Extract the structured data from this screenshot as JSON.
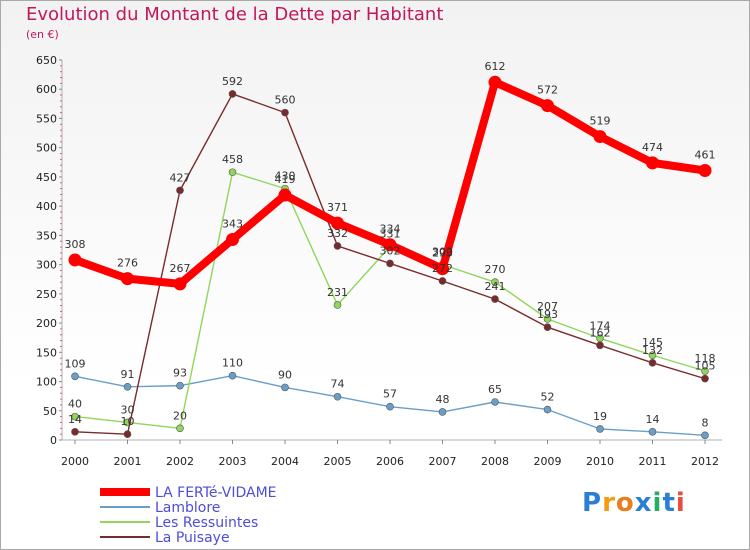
{
  "title": "Evolution du Montant de la Dette par Habitant",
  "subtitle": "(en €)",
  "logo": "Proxiti",
  "chart_data": {
    "type": "line",
    "x": [
      "2000",
      "2001",
      "2002",
      "2003",
      "2004",
      "2005",
      "2006",
      "2007",
      "2008",
      "2009",
      "2010",
      "2011",
      "2012"
    ],
    "ylim": [
      0,
      650
    ],
    "yticks": [
      0,
      50,
      100,
      150,
      200,
      250,
      300,
      350,
      400,
      450,
      500,
      550,
      600,
      650
    ],
    "grid": false,
    "legend_position": "bottom-left",
    "series": [
      {
        "name": "LA FERTé-VIDAME",
        "color": "#ff0000",
        "values": [
          308,
          276,
          267,
          343,
          419,
          371,
          334,
          293,
          612,
          572,
          519,
          474,
          461
        ]
      },
      {
        "name": "Lamblore",
        "color": "#6a9ec9",
        "values": [
          109,
          91,
          93,
          110,
          90,
          74,
          57,
          48,
          65,
          52,
          19,
          14,
          8
        ]
      },
      {
        "name": "Les Ressuintes",
        "color": "#8fd65a",
        "values": [
          40,
          30,
          20,
          458,
          430,
          231,
          331,
          300,
          270,
          207,
          174,
          145,
          118
        ]
      },
      {
        "name": "La Puisaye",
        "color": "#7a2a2a",
        "values": [
          14,
          10,
          427,
          592,
          560,
          332,
          302,
          272,
          241,
          193,
          162,
          132,
          105
        ]
      }
    ]
  }
}
